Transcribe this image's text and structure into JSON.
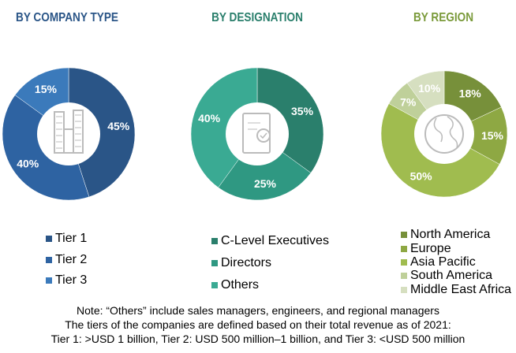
{
  "chart_data": [
    {
      "type": "pie",
      "title": "BY COMPANY TYPE",
      "title_color": "#2a5587",
      "categories": [
        "Tier 1",
        "Tier 2",
        "Tier 3"
      ],
      "values": [
        45,
        40,
        15
      ],
      "labels": [
        "45%",
        "40%",
        "15%"
      ],
      "colors": [
        "#2a5587",
        "#2e63a2",
        "#3b7abb"
      ],
      "donut": true,
      "center_icon": "buildings-icon",
      "legend": "bottom"
    },
    {
      "type": "pie",
      "title": "BY DESIGNATION",
      "title_color": "#2a7f6c",
      "categories": [
        "C-Level Executives",
        "Directors",
        "Others"
      ],
      "values": [
        35,
        25,
        40
      ],
      "labels": [
        "35%",
        "25%",
        "40%"
      ],
      "colors": [
        "#2a7f6c",
        "#2f9882",
        "#3aaa93"
      ],
      "donut": true,
      "center_icon": "certificate-icon",
      "legend": "bottom"
    },
    {
      "type": "pie",
      "title": "BY REGION",
      "title_color": "#7a9a3a",
      "categories": [
        "North America",
        "Europe",
        "Asia Pacific",
        "South America",
        "Middle East Africa"
      ],
      "values": [
        18,
        15,
        50,
        7,
        10
      ],
      "labels": [
        "18%",
        "15%",
        "50%",
        "7%",
        "10%"
      ],
      "colors": [
        "#77903a",
        "#8ea843",
        "#a0bc4f",
        "#bfd09a",
        "#d6dfc0"
      ],
      "donut": true,
      "center_icon": "globe-icon",
      "legend": "bottom"
    }
  ],
  "notes": [
    "Note: “Others” include sales managers, engineers, and regional managers",
    "The tiers of the companies are defined based on their total revenue as of 2021:",
    "Tier 1: >USD 1 billion, Tier 2: USD 500 million–1 billion, and Tier 3: <USD 500 million"
  ]
}
